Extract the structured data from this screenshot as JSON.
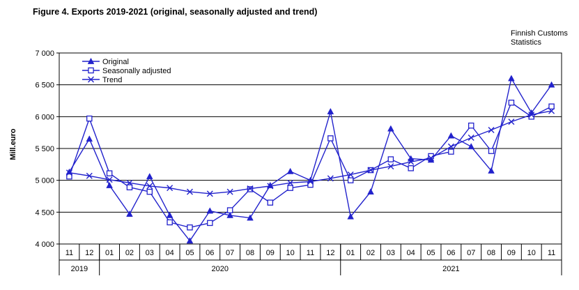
{
  "title": "Figure 4. Exports 2019-2021 (original, seasonally adjusted and trend)",
  "source": {
    "line1": "Finnish Customs",
    "line2": "Statistics"
  },
  "chart_data": {
    "type": "line",
    "title": "Figure 4. Exports 2019-2021 (original, seasonally adjusted and trend)",
    "xlabel": "",
    "ylabel": "Mill.euro",
    "ylim": [
      4000,
      7000
    ],
    "ytick_step": 500,
    "ytick_labels": [
      "7 000",
      "6 500",
      "6 000",
      "5 500",
      "5 000",
      "4 500",
      "4 000"
    ],
    "grid": true,
    "legend_position": "top-left-inside",
    "series_color": "#2222CC",
    "x_months": [
      "11",
      "12",
      "01",
      "02",
      "03",
      "04",
      "05",
      "06",
      "07",
      "08",
      "09",
      "10",
      "11",
      "12",
      "01",
      "02",
      "03",
      "04",
      "05",
      "06",
      "07",
      "08",
      "09",
      "10",
      "11"
    ],
    "year_groups": [
      {
        "label": "2019",
        "months": 2
      },
      {
        "label": "2020",
        "months": 12
      },
      {
        "label": "2021",
        "months": 11
      }
    ],
    "series": [
      {
        "name": "Original",
        "marker": "triangle",
        "values": [
          5130,
          5650,
          4920,
          4470,
          5060,
          4450,
          4050,
          4520,
          4450,
          4410,
          4920,
          5140,
          5000,
          6080,
          4430,
          4820,
          5810,
          5340,
          5320,
          5700,
          5530,
          5150,
          6600,
          6060,
          6500
        ]
      },
      {
        "name": "Seasonally adjusted",
        "marker": "square-open",
        "values": [
          5060,
          5970,
          5110,
          4890,
          4820,
          4340,
          4260,
          4330,
          4530,
          4860,
          4650,
          4880,
          4930,
          5660,
          5000,
          5160,
          5330,
          5190,
          5380,
          5450,
          5860,
          5460,
          6220,
          6000,
          6160
        ]
      },
      {
        "name": "Trend",
        "marker": "x",
        "values": [
          5120,
          5070,
          5010,
          4960,
          4910,
          4880,
          4820,
          4790,
          4820,
          4870,
          4910,
          4960,
          4980,
          5030,
          5090,
          5160,
          5220,
          5290,
          5350,
          5530,
          5670,
          5790,
          5920,
          6030,
          6090
        ]
      }
    ]
  }
}
